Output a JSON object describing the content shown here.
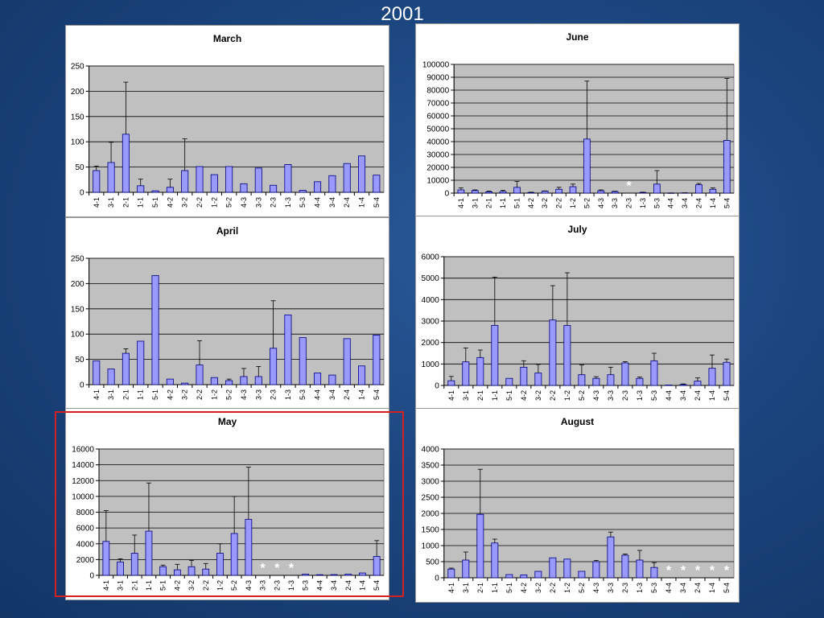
{
  "slide": {
    "title": "2001"
  },
  "chart_data": [
    {
      "id": "march",
      "type": "bar",
      "title": "March",
      "categories": [
        "4-1",
        "3-1",
        "2-1",
        "1-1",
        "5-1",
        "4-2",
        "3-2",
        "2-2",
        "1-2",
        "5-2",
        "4-3",
        "3-3",
        "2-3",
        "1-3",
        "5-3",
        "4-4",
        "3-4",
        "2-4",
        "1-4",
        "5-4"
      ],
      "values": [
        43,
        59,
        115,
        13,
        3,
        10,
        43,
        51,
        35,
        51,
        17,
        48,
        14,
        55,
        4,
        21,
        33,
        57,
        72,
        34
      ],
      "errors": [
        9,
        40,
        103,
        13,
        0,
        16,
        63,
        0,
        0,
        0,
        0,
        0,
        0,
        0,
        0,
        0,
        0,
        0,
        0,
        0
      ],
      "ylim": [
        0,
        250
      ],
      "yticks": [
        0,
        50,
        100,
        150,
        200,
        250
      ],
      "missing": [],
      "highlighted": false
    },
    {
      "id": "june",
      "type": "bar",
      "title": "June",
      "categories": [
        "4-1",
        "3-1",
        "2-1",
        "1-1",
        "5-1",
        "4-2",
        "3-2",
        "2-2",
        "1-2",
        "5-2",
        "4-3",
        "3-3",
        "2-3",
        "1-3",
        "5-3",
        "4-4",
        "3-4",
        "2-4",
        "1-4",
        "5-4"
      ],
      "values": [
        2500,
        2000,
        1000,
        1200,
        4500,
        500,
        1500,
        3000,
        5000,
        42000,
        1800,
        1200,
        0,
        500,
        7000,
        100,
        200,
        6500,
        3000,
        41000
      ],
      "errors": [
        1500,
        500,
        500,
        1000,
        4500,
        200,
        200,
        1500,
        2000,
        45000,
        700,
        300,
        0,
        200,
        10500,
        50,
        50,
        1000,
        1000,
        48000
      ],
      "ylim": [
        0,
        100000
      ],
      "yticks": [
        0,
        10000,
        20000,
        30000,
        40000,
        50000,
        60000,
        70000,
        80000,
        90000,
        100000
      ],
      "missing": [
        "2-3"
      ],
      "highlighted": false
    },
    {
      "id": "april",
      "type": "bar",
      "title": "April",
      "categories": [
        "4-1",
        "3-1",
        "2-1",
        "1-1",
        "5-1",
        "4-2",
        "3-2",
        "2-2",
        "1-2",
        "5-2",
        "4-3",
        "3-3",
        "2-3",
        "1-3",
        "5-3",
        "4-4",
        "3-4",
        "2-4",
        "1-4",
        "5-4"
      ],
      "values": [
        47,
        31,
        62,
        86,
        216,
        11,
        3,
        39,
        14,
        8,
        16,
        16,
        72,
        138,
        93,
        23,
        19,
        91,
        37,
        98
      ],
      "errors": [
        0,
        0,
        9,
        0,
        0,
        0,
        0,
        48,
        0,
        3,
        16,
        20,
        94,
        0,
        0,
        0,
        0,
        0,
        0,
        0
      ],
      "ylim": [
        0,
        250
      ],
      "yticks": [
        0,
        50,
        100,
        150,
        200,
        250
      ],
      "missing": [],
      "highlighted": false
    },
    {
      "id": "july",
      "type": "bar",
      "title": "July",
      "categories": [
        "4-1",
        "3-1",
        "2-1",
        "1-1",
        "5-1",
        "4-2",
        "3-2",
        "2-2",
        "1-2",
        "5-2",
        "4-3",
        "3-3",
        "2-3",
        "1-3",
        "5-3",
        "4-4",
        "3-4",
        "2-4",
        "1-4",
        "5-4"
      ],
      "values": [
        220,
        1100,
        1300,
        2800,
        330,
        850,
        580,
        3050,
        2800,
        500,
        330,
        500,
        1050,
        330,
        1150,
        20,
        40,
        200,
        800,
        1080
      ],
      "errors": [
        200,
        650,
        350,
        2250,
        0,
        300,
        400,
        1600,
        2450,
        450,
        80,
        350,
        60,
        60,
        350,
        0,
        30,
        150,
        620,
        150
      ],
      "ylim": [
        0,
        6000
      ],
      "yticks": [
        0,
        1000,
        2000,
        3000,
        4000,
        5000,
        6000
      ],
      "missing": [],
      "highlighted": false
    },
    {
      "id": "may",
      "type": "bar",
      "title": "May",
      "categories": [
        "4-1",
        "3-1",
        "2-1",
        "1-1",
        "5-1",
        "4-2",
        "3-2",
        "2-2",
        "1-2",
        "5-2",
        "4-3",
        "3-3",
        "2-3",
        "1-3",
        "5-3",
        "4-4",
        "3-4",
        "2-4",
        "1-4",
        "5-4"
      ],
      "values": [
        4300,
        1700,
        2800,
        5600,
        1100,
        700,
        1100,
        800,
        2800,
        5300,
        7100,
        0,
        0,
        0,
        150,
        80,
        100,
        150,
        300,
        2400
      ],
      "errors": [
        3900,
        400,
        2300,
        6100,
        200,
        700,
        800,
        700,
        1200,
        4700,
        6600,
        0,
        0,
        0,
        0,
        0,
        0,
        0,
        0,
        2000
      ],
      "ylim": [
        0,
        16000
      ],
      "yticks": [
        0,
        2000,
        4000,
        6000,
        8000,
        10000,
        12000,
        14000,
        16000
      ],
      "missing": [
        "3-3",
        "2-3",
        "1-3"
      ],
      "highlighted": true
    },
    {
      "id": "august",
      "type": "bar",
      "title": "August",
      "categories": [
        "4-1",
        "3-1",
        "2-1",
        "1-1",
        "5-1",
        "4-2",
        "3-2",
        "2-2",
        "1-2",
        "5-2",
        "4-3",
        "3-3",
        "2-3",
        "1-3",
        "5-3",
        "4-4",
        "3-4",
        "2-4",
        "1-4",
        "5-4"
      ],
      "values": [
        270,
        550,
        1970,
        1080,
        100,
        90,
        200,
        620,
        580,
        200,
        500,
        1270,
        700,
        550,
        320,
        0,
        0,
        0,
        0,
        0
      ],
      "errors": [
        30,
        250,
        1400,
        120,
        0,
        0,
        0,
        0,
        0,
        0,
        40,
        150,
        40,
        300,
        150,
        0,
        0,
        0,
        0,
        0
      ],
      "ylim": [
        0,
        4000
      ],
      "yticks": [
        0,
        500,
        1000,
        1500,
        2000,
        2500,
        3000,
        3500,
        4000
      ],
      "missing": [
        "4-4",
        "3-4",
        "2-4",
        "1-4",
        "5-4"
      ],
      "highlighted": false
    }
  ],
  "colors": {
    "plot_bg": "#c0c0c0",
    "bar_fill": "#9999ff",
    "bar_stroke": "#000080",
    "missing_marker": "#ffffff",
    "highlight_border": "#d42020"
  },
  "missing_marker_symbol": "*"
}
